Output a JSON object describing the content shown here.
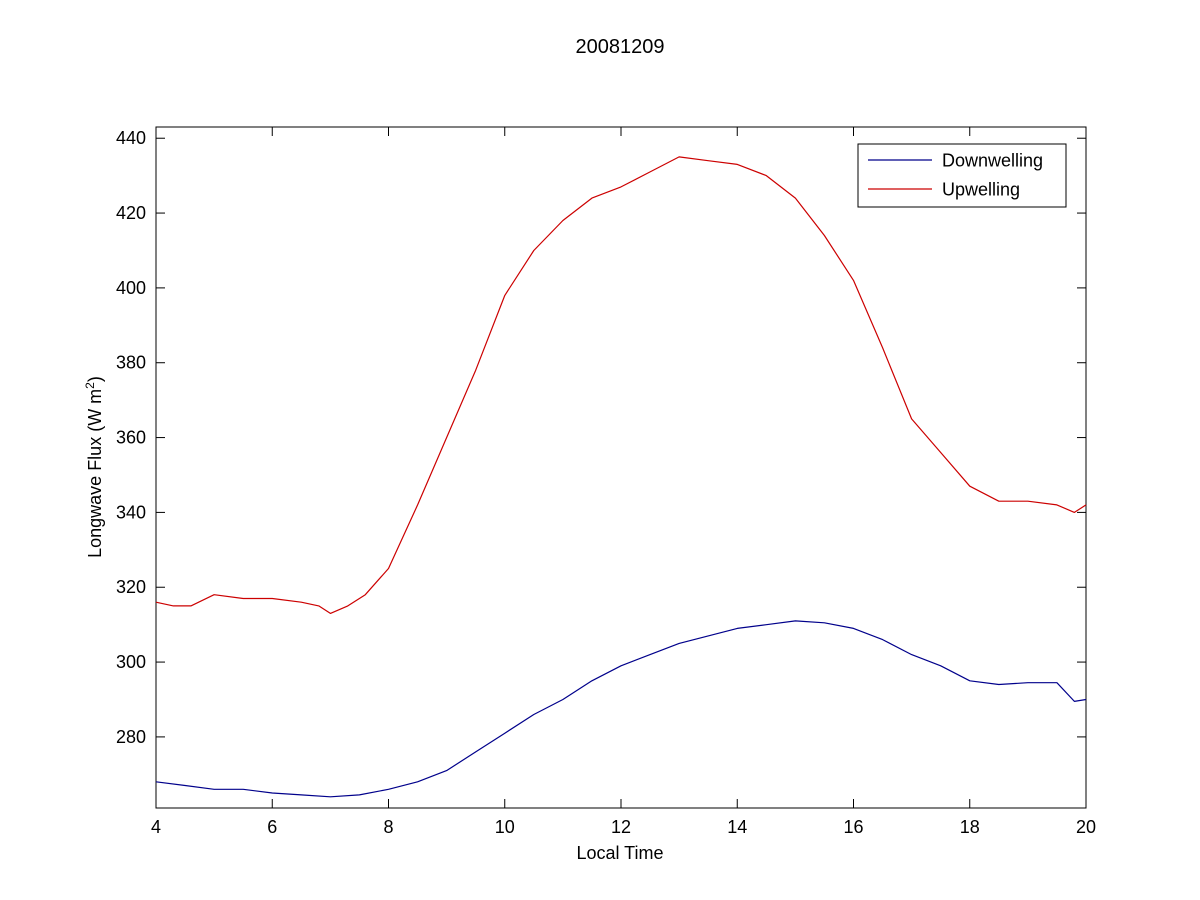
{
  "chart_data": {
    "type": "line",
    "title": "20081209",
    "xlabel": "Local Time",
    "ylabel": "Longwave Flux (W m",
    "ylabel_sup": "2",
    "ylabel_end": ")",
    "xlim": [
      4,
      20
    ],
    "ylim": [
      261,
      443
    ],
    "xticks": [
      4,
      6,
      8,
      10,
      12,
      14,
      16,
      18,
      20
    ],
    "yticks": [
      280,
      300,
      320,
      340,
      360,
      380,
      400,
      420,
      440
    ],
    "grid": false,
    "legend_position": "top-right",
    "series": [
      {
        "name": "Downwelling",
        "color": "#00008b",
        "x": [
          4.0,
          4.5,
          5.0,
          5.5,
          6.0,
          6.5,
          7.0,
          7.5,
          8.0,
          8.5,
          9.0,
          9.5,
          10.0,
          10.5,
          11.0,
          11.5,
          12.0,
          12.5,
          13.0,
          13.5,
          14.0,
          14.5,
          15.0,
          15.5,
          16.0,
          16.5,
          17.0,
          17.5,
          18.0,
          18.5,
          19.0,
          19.5,
          19.8,
          20.0
        ],
        "y": [
          268,
          267,
          266,
          266,
          265,
          264.5,
          264,
          264.5,
          266,
          268,
          271,
          276,
          281,
          286,
          290,
          295,
          299,
          302,
          305,
          307,
          309,
          310,
          311,
          310.5,
          309,
          306,
          302,
          299,
          295,
          294,
          294.5,
          294.5,
          289.5,
          290
        ]
      },
      {
        "name": "Upwelling",
        "color": "#cc0000",
        "x": [
          4.0,
          4.3,
          4.6,
          5.0,
          5.5,
          6.0,
          6.5,
          6.8,
          7.0,
          7.3,
          7.6,
          8.0,
          8.5,
          9.0,
          9.5,
          10.0,
          10.5,
          11.0,
          11.5,
          12.0,
          12.5,
          13.0,
          13.5,
          14.0,
          14.5,
          15.0,
          15.5,
          16.0,
          16.5,
          17.0,
          17.5,
          18.0,
          18.5,
          19.0,
          19.5,
          19.8,
          20.0
        ],
        "y": [
          316,
          315,
          315,
          318,
          317,
          317,
          316,
          315,
          313,
          315,
          318,
          325,
          342,
          360,
          378,
          398,
          410,
          418,
          424,
          427,
          431,
          435,
          434,
          433,
          430,
          424,
          414,
          402,
          384,
          365,
          356,
          347,
          343,
          343,
          342,
          340,
          342
        ]
      }
    ]
  }
}
